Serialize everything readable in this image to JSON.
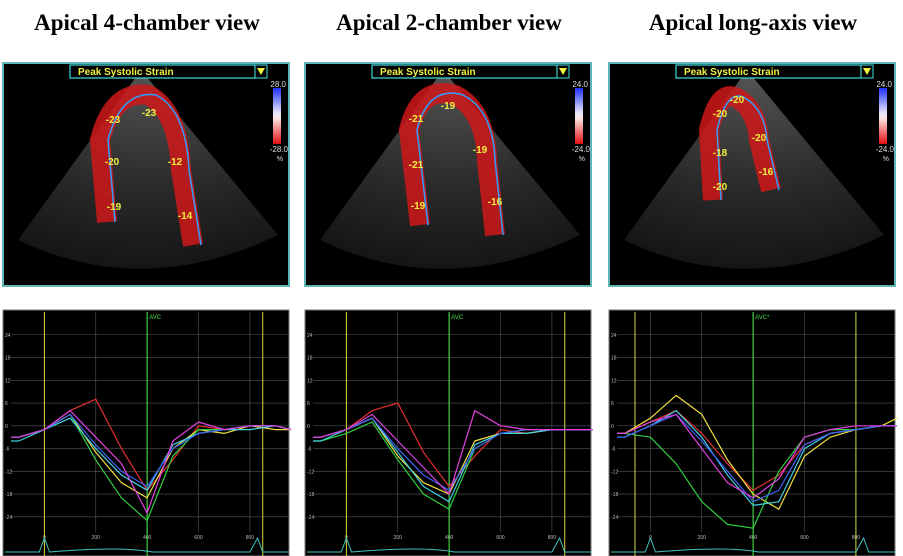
{
  "views": [
    {
      "title": "Apical 4-chamber view",
      "overlay_label": "Peak Systolic Strain",
      "scale_max": "28.0",
      "scale_min": "-28.0",
      "scale_unit": "%",
      "segments": [
        -23,
        -23,
        -20,
        -12,
        -19,
        -14
      ],
      "curves": {
        "marker": "AVC",
        "marker_x": 400,
        "event_x": [
          0,
          850
        ],
        "xlim": [
          -130,
          960
        ],
        "ylim": [
          -28,
          30
        ],
        "xticks": [
          0,
          200,
          400,
          600,
          800
        ],
        "yticks": [
          24,
          18,
          12,
          6,
          0,
          -6,
          -12,
          -18,
          -24
        ],
        "x": [
          -130,
          -100,
          0,
          100,
          200,
          300,
          400,
          500,
          600,
          700,
          800,
          900,
          960
        ],
        "series": [
          {
            "color": "#e03030",
            "values": [
              -3,
              -3,
              -1,
              4,
              7,
              -6,
              -17,
              -9,
              0,
              -1,
              0,
              0,
              -1
            ]
          },
          {
            "color": "#f0e040",
            "values": [
              -3,
              -3,
              -1,
              3,
              -7,
              -15,
              -19,
              -6,
              -1,
              -2,
              0,
              -1,
              -1
            ]
          },
          {
            "color": "#30d040",
            "values": [
              -3,
              -3,
              -1,
              3,
              -9,
              -19,
              -25,
              -8,
              -1,
              -1,
              0,
              0,
              -1
            ]
          },
          {
            "color": "#40d0e0",
            "values": [
              -4,
              -4,
              -1,
              2,
              -6,
              -13,
              -17,
              -5,
              -2,
              -1,
              -1,
              0,
              -1
            ]
          },
          {
            "color": "#4060f0",
            "values": [
              -3,
              -3,
              -1,
              3,
              -5,
              -12,
              -16,
              -6,
              -2,
              -1,
              0,
              0,
              -1
            ]
          },
          {
            "color": "#e040e0",
            "values": [
              -3,
              -3,
              -1,
              4,
              -3,
              -10,
              -23,
              -4,
              1,
              -1,
              0,
              0,
              -1
            ]
          }
        ]
      }
    },
    {
      "title": "Apical 2-chamber view",
      "overlay_label": "Peak Systolic Strain",
      "scale_max": "24.0",
      "scale_min": "-24.0",
      "scale_unit": "%",
      "segments": [
        -19,
        -21,
        -19,
        -21,
        -19,
        -16
      ],
      "curves": {
        "marker": "AVC",
        "marker_x": 400,
        "event_x": [
          0,
          850
        ],
        "xlim": [
          -130,
          960
        ],
        "ylim": [
          -28,
          30
        ],
        "xticks": [
          0,
          200,
          400,
          600,
          800
        ],
        "yticks": [
          24,
          18,
          12,
          6,
          0,
          -6,
          -12,
          -18,
          -24
        ],
        "x": [
          -130,
          -100,
          0,
          100,
          200,
          300,
          400,
          500,
          600,
          700,
          800,
          900,
          960
        ],
        "series": [
          {
            "color": "#e03030",
            "values": [
              -3,
              -3,
              -1,
              4,
              6,
              -7,
              -16,
              -8,
              -1,
              -2,
              -1,
              -1,
              -1
            ]
          },
          {
            "color": "#f0e040",
            "values": [
              -3,
              -3,
              -1,
              2,
              -8,
              -15,
              -18,
              -4,
              -2,
              -2,
              -1,
              -1,
              -1
            ]
          },
          {
            "color": "#30d040",
            "values": [
              -4,
              -4,
              -2,
              1,
              -9,
              -18,
              -22,
              -6,
              -2,
              -1,
              -1,
              -1,
              -1
            ]
          },
          {
            "color": "#40d0e0",
            "values": [
              -4,
              -4,
              -1,
              2,
              -7,
              -16,
              -20,
              -5,
              -2,
              -2,
              -1,
              -1,
              -1
            ]
          },
          {
            "color": "#4060f0",
            "values": [
              -3,
              -3,
              -1,
              2,
              -6,
              -13,
              -17,
              -6,
              -2,
              -1,
              -1,
              -1,
              -1
            ]
          },
          {
            "color": "#e040e0",
            "values": [
              -3,
              -3,
              -1,
              3,
              -4,
              -11,
              -18,
              4,
              0,
              -1,
              -1,
              -1,
              -1
            ]
          }
        ]
      }
    },
    {
      "title": "Apical long-axis view",
      "overlay_label": "Peak Systolic Strain",
      "scale_max": "24.0",
      "scale_min": "-24.0",
      "scale_unit": "%",
      "segments": [
        -20,
        -20,
        -20,
        -18,
        -20,
        -16
      ],
      "curves": {
        "marker": "AVC*",
        "marker_x": 400,
        "event_x": [
          -60,
          800
        ],
        "xlim": [
          -130,
          960
        ],
        "ylim": [
          -28,
          30
        ],
        "xticks": [
          0,
          200,
          400,
          600,
          800
        ],
        "yticks": [
          24,
          18,
          12,
          6,
          0,
          -6,
          -12,
          -18,
          -24
        ],
        "x": [
          -130,
          -100,
          0,
          100,
          200,
          300,
          400,
          500,
          600,
          700,
          800,
          900,
          960
        ],
        "series": [
          {
            "color": "#e03030",
            "values": [
              -2,
              -2,
              1,
              4,
              -2,
              -10,
              -17,
              -13,
              -5,
              -2,
              -1,
              0,
              0
            ]
          },
          {
            "color": "#f0e040",
            "values": [
              -2,
              -2,
              2,
              8,
              3,
              -9,
              -18,
              -22,
              -8,
              -3,
              -1,
              0,
              2
            ]
          },
          {
            "color": "#30d040",
            "values": [
              -2,
              -2,
              -3,
              -10,
              -20,
              -26,
              -27,
              -12,
              -3,
              -1,
              -1,
              0,
              0
            ]
          },
          {
            "color": "#40d0e0",
            "values": [
              -3,
              -3,
              0,
              4,
              -3,
              -13,
              -21,
              -20,
              -6,
              -2,
              -1,
              0,
              0
            ]
          },
          {
            "color": "#4060f0",
            "values": [
              -3,
              -3,
              0,
              3,
              -4,
              -12,
              -20,
              -17,
              -5,
              -2,
              -1,
              0,
              0
            ]
          },
          {
            "color": "#e040e0",
            "values": [
              -2,
              -2,
              1,
              3,
              -6,
              -15,
              -19,
              -14,
              -3,
              -1,
              0,
              0,
              0
            ]
          }
        ]
      }
    }
  ]
}
